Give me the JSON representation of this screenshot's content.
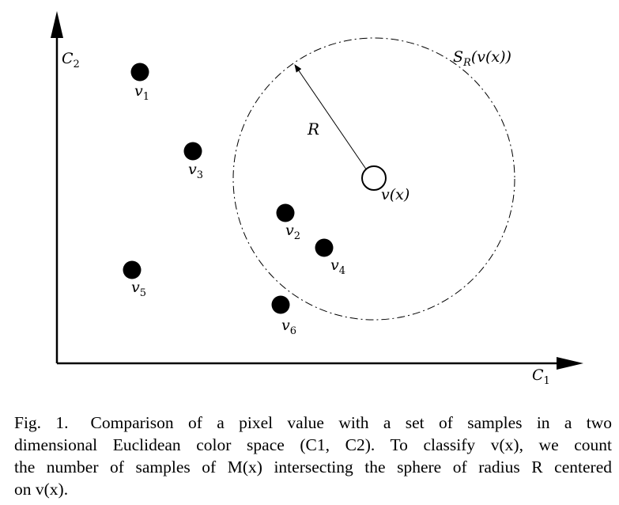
{
  "axes": {
    "x_label": "C",
    "x_label_sub": "1",
    "y_label": "C",
    "y_label_sub": "2"
  },
  "sphere": {
    "label": "S",
    "label_sub": "R",
    "label_arg": "(v(x))",
    "radius_label": "R",
    "center_label": "v(x)"
  },
  "samples": [
    {
      "name": "v",
      "sub": "1"
    },
    {
      "name": "v",
      "sub": "2"
    },
    {
      "name": "v",
      "sub": "3"
    },
    {
      "name": "v",
      "sub": "4"
    },
    {
      "name": "v",
      "sub": "5"
    },
    {
      "name": "v",
      "sub": "6"
    }
  ],
  "caption": {
    "fig_label": "Fig. 1.",
    "line1": "Comparison of a pixel value with a set of samples in a two",
    "line2": "dimensional Euclidean color space (C1, C2). To classify v(x), we count",
    "line3": "the number of samples of M(x) intersecting the sphere of radius R centered",
    "line4": "on v(x)."
  }
}
